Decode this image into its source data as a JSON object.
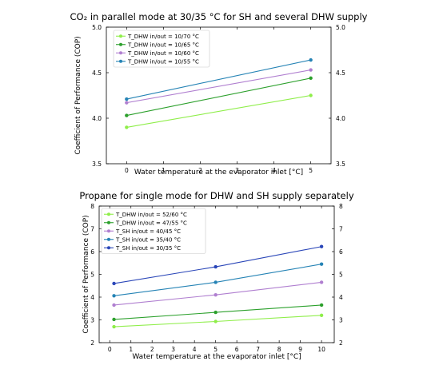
{
  "chart_data": [
    {
      "type": "line",
      "title": "CO₂ in parallel mode at 30/35 °C for SH and several DHW supply",
      "xlabel": "Water temperature at the evaporator inlet [°C]",
      "ylabel": "Coefficient of Performance (COP)",
      "xlim": [
        -0.55,
        5.55
      ],
      "ylim": [
        3.5,
        5.0
      ],
      "xticks": [
        "0",
        "1",
        "2",
        "3",
        "4",
        "5"
      ],
      "yticks": [
        "3.5",
        "4.0",
        "4.5",
        "5.0"
      ],
      "legend_position": "upper-left",
      "grid": false,
      "series": [
        {
          "name": "T_DHW in/out = 10/70 °C",
          "color": "#8fee4a",
          "x": [
            0,
            5
          ],
          "y": [
            3.9,
            4.25
          ]
        },
        {
          "name": "T_DHW in/out = 10/65 °C",
          "color": "#2ca02c",
          "x": [
            0,
            5
          ],
          "y": [
            4.03,
            4.44
          ]
        },
        {
          "name": "T_DHW in/out = 10/60 °C",
          "color": "#b07fd0",
          "x": [
            0,
            5
          ],
          "y": [
            4.17,
            4.53
          ]
        },
        {
          "name": "T_DHW in/out = 10/55 °C",
          "color": "#2583b5",
          "x": [
            0,
            5
          ],
          "y": [
            4.21,
            4.64
          ]
        }
      ]
    },
    {
      "type": "line",
      "title": "Propane for single mode for DHW and SH supply separately",
      "xlabel": "Water temperature at the evaporator inlet [°C]",
      "ylabel": "Coefficient of Performance (COP)",
      "xlim": [
        -0.5,
        10.6
      ],
      "ylim": [
        2,
        8
      ],
      "xticks": [
        "0",
        "1",
        "2",
        "3",
        "4",
        "5",
        "6",
        "7",
        "8",
        "9",
        "10"
      ],
      "yticks": [
        "2",
        "3",
        "4",
        "5",
        "6",
        "7",
        "8"
      ],
      "legend_position": "upper-left",
      "grid": false,
      "series": [
        {
          "name": "T_DHW in/out = 52/60 °C",
          "color": "#8fee4a",
          "x": [
            0.2,
            5,
            10
          ],
          "y": [
            2.7,
            2.93,
            3.2
          ]
        },
        {
          "name": "T_DHW in/out = 47/55 °C",
          "color": "#2ca02c",
          "x": [
            0.2,
            5,
            10
          ],
          "y": [
            3.02,
            3.33,
            3.65
          ]
        },
        {
          "name": "T_SH in/out = 40/45 °C",
          "color": "#b07fd0",
          "x": [
            0.2,
            5,
            10
          ],
          "y": [
            3.65,
            4.1,
            4.65
          ]
        },
        {
          "name": "T_SH in/out = 35/40 °C",
          "color": "#2583b5",
          "x": [
            0.2,
            5,
            10
          ],
          "y": [
            4.06,
            4.65,
            5.45
          ]
        },
        {
          "name": "T_SH in/out = 30/35 °C",
          "color": "#2a46b8",
          "x": [
            0.2,
            5,
            10
          ],
          "y": [
            4.6,
            5.33,
            6.22
          ]
        }
      ]
    }
  ]
}
